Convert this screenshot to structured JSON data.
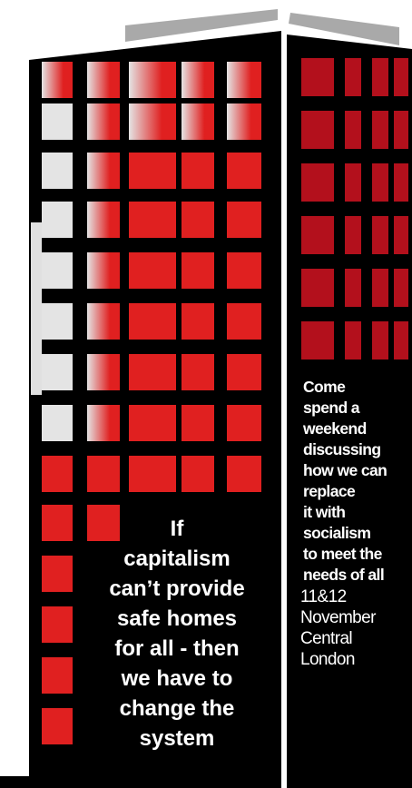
{
  "poster": {
    "main_text": [
      "If",
      "capitalism",
      "can’t provide",
      "safe homes",
      "for all - then",
      "we have to",
      "change the",
      "system"
    ],
    "side_text": [
      "Come",
      "spend a",
      "weekend",
      "discussing",
      "how we can",
      "replace",
      "it with",
      "socialism",
      "to meet the",
      "needs of all"
    ],
    "event_details": [
      "11&12",
      "November",
      "Central",
      "London"
    ]
  }
}
